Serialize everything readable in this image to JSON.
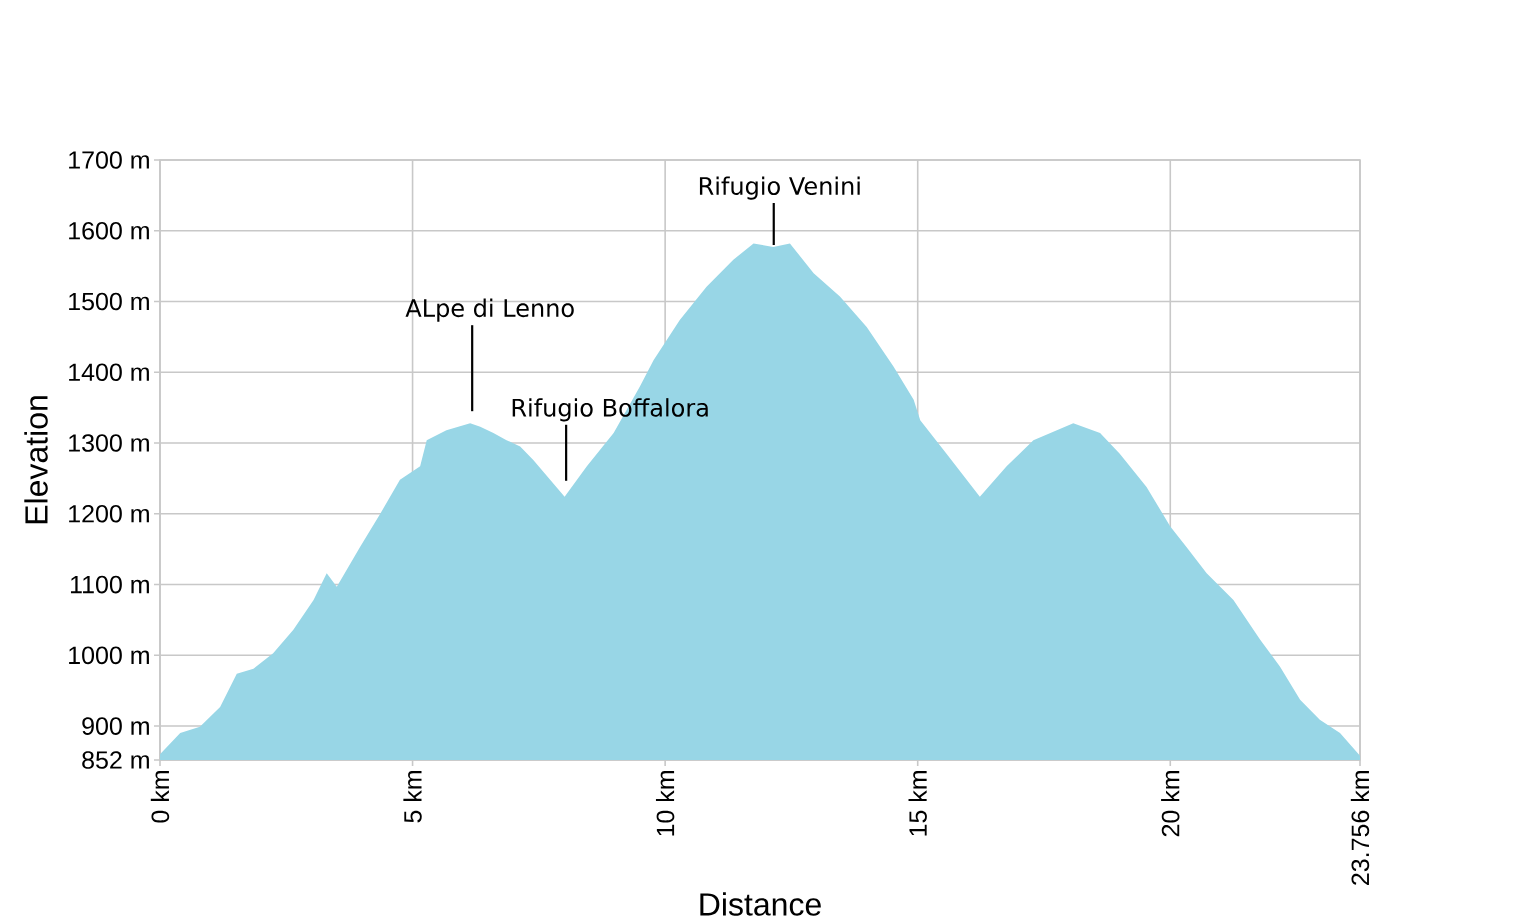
{
  "chart_data": {
    "type": "area",
    "xlabel": "Distance",
    "ylabel": "Elevation",
    "color": "#98d6e6",
    "x": [
      0,
      0.4,
      0.79,
      1.19,
      1.52,
      1.85,
      2.24,
      2.64,
      3.04,
      3.3,
      3.5,
      3.96,
      4.36,
      4.75,
      5.15,
      5.28,
      5.67,
      6.14,
      6.34,
      6.6,
      6.86,
      7.13,
      7.39,
      8.01,
      8.45,
      8.98,
      9.5,
      9.77,
      10.29,
      10.82,
      11.35,
      11.75,
      12.14,
      12.47,
      12.94,
      13.46,
      13.99,
      14.52,
      14.92,
      15.05,
      15.57,
      16.23,
      16.76,
      17.29,
      18.08,
      18.61,
      19.0,
      19.53,
      20.0,
      20.32,
      20.72,
      21.25,
      21.78,
      22.17,
      22.57,
      22.96,
      23.36,
      23.756
    ],
    "values": [
      860,
      890,
      899,
      927,
      974,
      981,
      1003,
      1036,
      1078,
      1116,
      1097,
      1153,
      1200,
      1248,
      1267,
      1304,
      1318,
      1328,
      1323,
      1314,
      1304,
      1295,
      1276,
      1224,
      1267,
      1314,
      1380,
      1417,
      1474,
      1521,
      1559,
      1582,
      1577,
      1582,
      1540,
      1507,
      1464,
      1408,
      1361,
      1332,
      1285,
      1224,
      1267,
      1304,
      1328,
      1314,
      1285,
      1238,
      1182,
      1153,
      1116,
      1078,
      1022,
      984,
      937,
      909,
      890,
      858
    ],
    "xlim": [
      0,
      23.756
    ],
    "ylim": [
      852,
      1700
    ],
    "xticks": [
      {
        "value": 0,
        "label": "0 km"
      },
      {
        "value": 5,
        "label": "5 km"
      },
      {
        "value": 10,
        "label": "10 km"
      },
      {
        "value": 15,
        "label": "15 km"
      },
      {
        "value": 20,
        "label": "20 km"
      },
      {
        "value": 23.756,
        "label": "23.756 km"
      }
    ],
    "yticks": [
      {
        "value": 852,
        "label": "852 m"
      },
      {
        "value": 900,
        "label": "900 m"
      },
      {
        "value": 1000,
        "label": "1000 m"
      },
      {
        "value": 1100,
        "label": "1100 m"
      },
      {
        "value": 1200,
        "label": "1200 m"
      },
      {
        "value": 1300,
        "label": "1300 m"
      },
      {
        "value": 1400,
        "label": "1400 m"
      },
      {
        "value": 1500,
        "label": "1500 m"
      },
      {
        "value": 1600,
        "label": "1600 m"
      },
      {
        "value": 1700,
        "label": "1700 m"
      }
    ],
    "grid": true,
    "annotations": [
      {
        "text": "ALpe di Lenno",
        "x": 6.18,
        "y": 1328
      },
      {
        "text": "Rifugio Boffalora",
        "x": 8.04,
        "y": 1224
      },
      {
        "text": "Rifugio Venini",
        "x": 12.15,
        "y": 1577
      }
    ]
  }
}
